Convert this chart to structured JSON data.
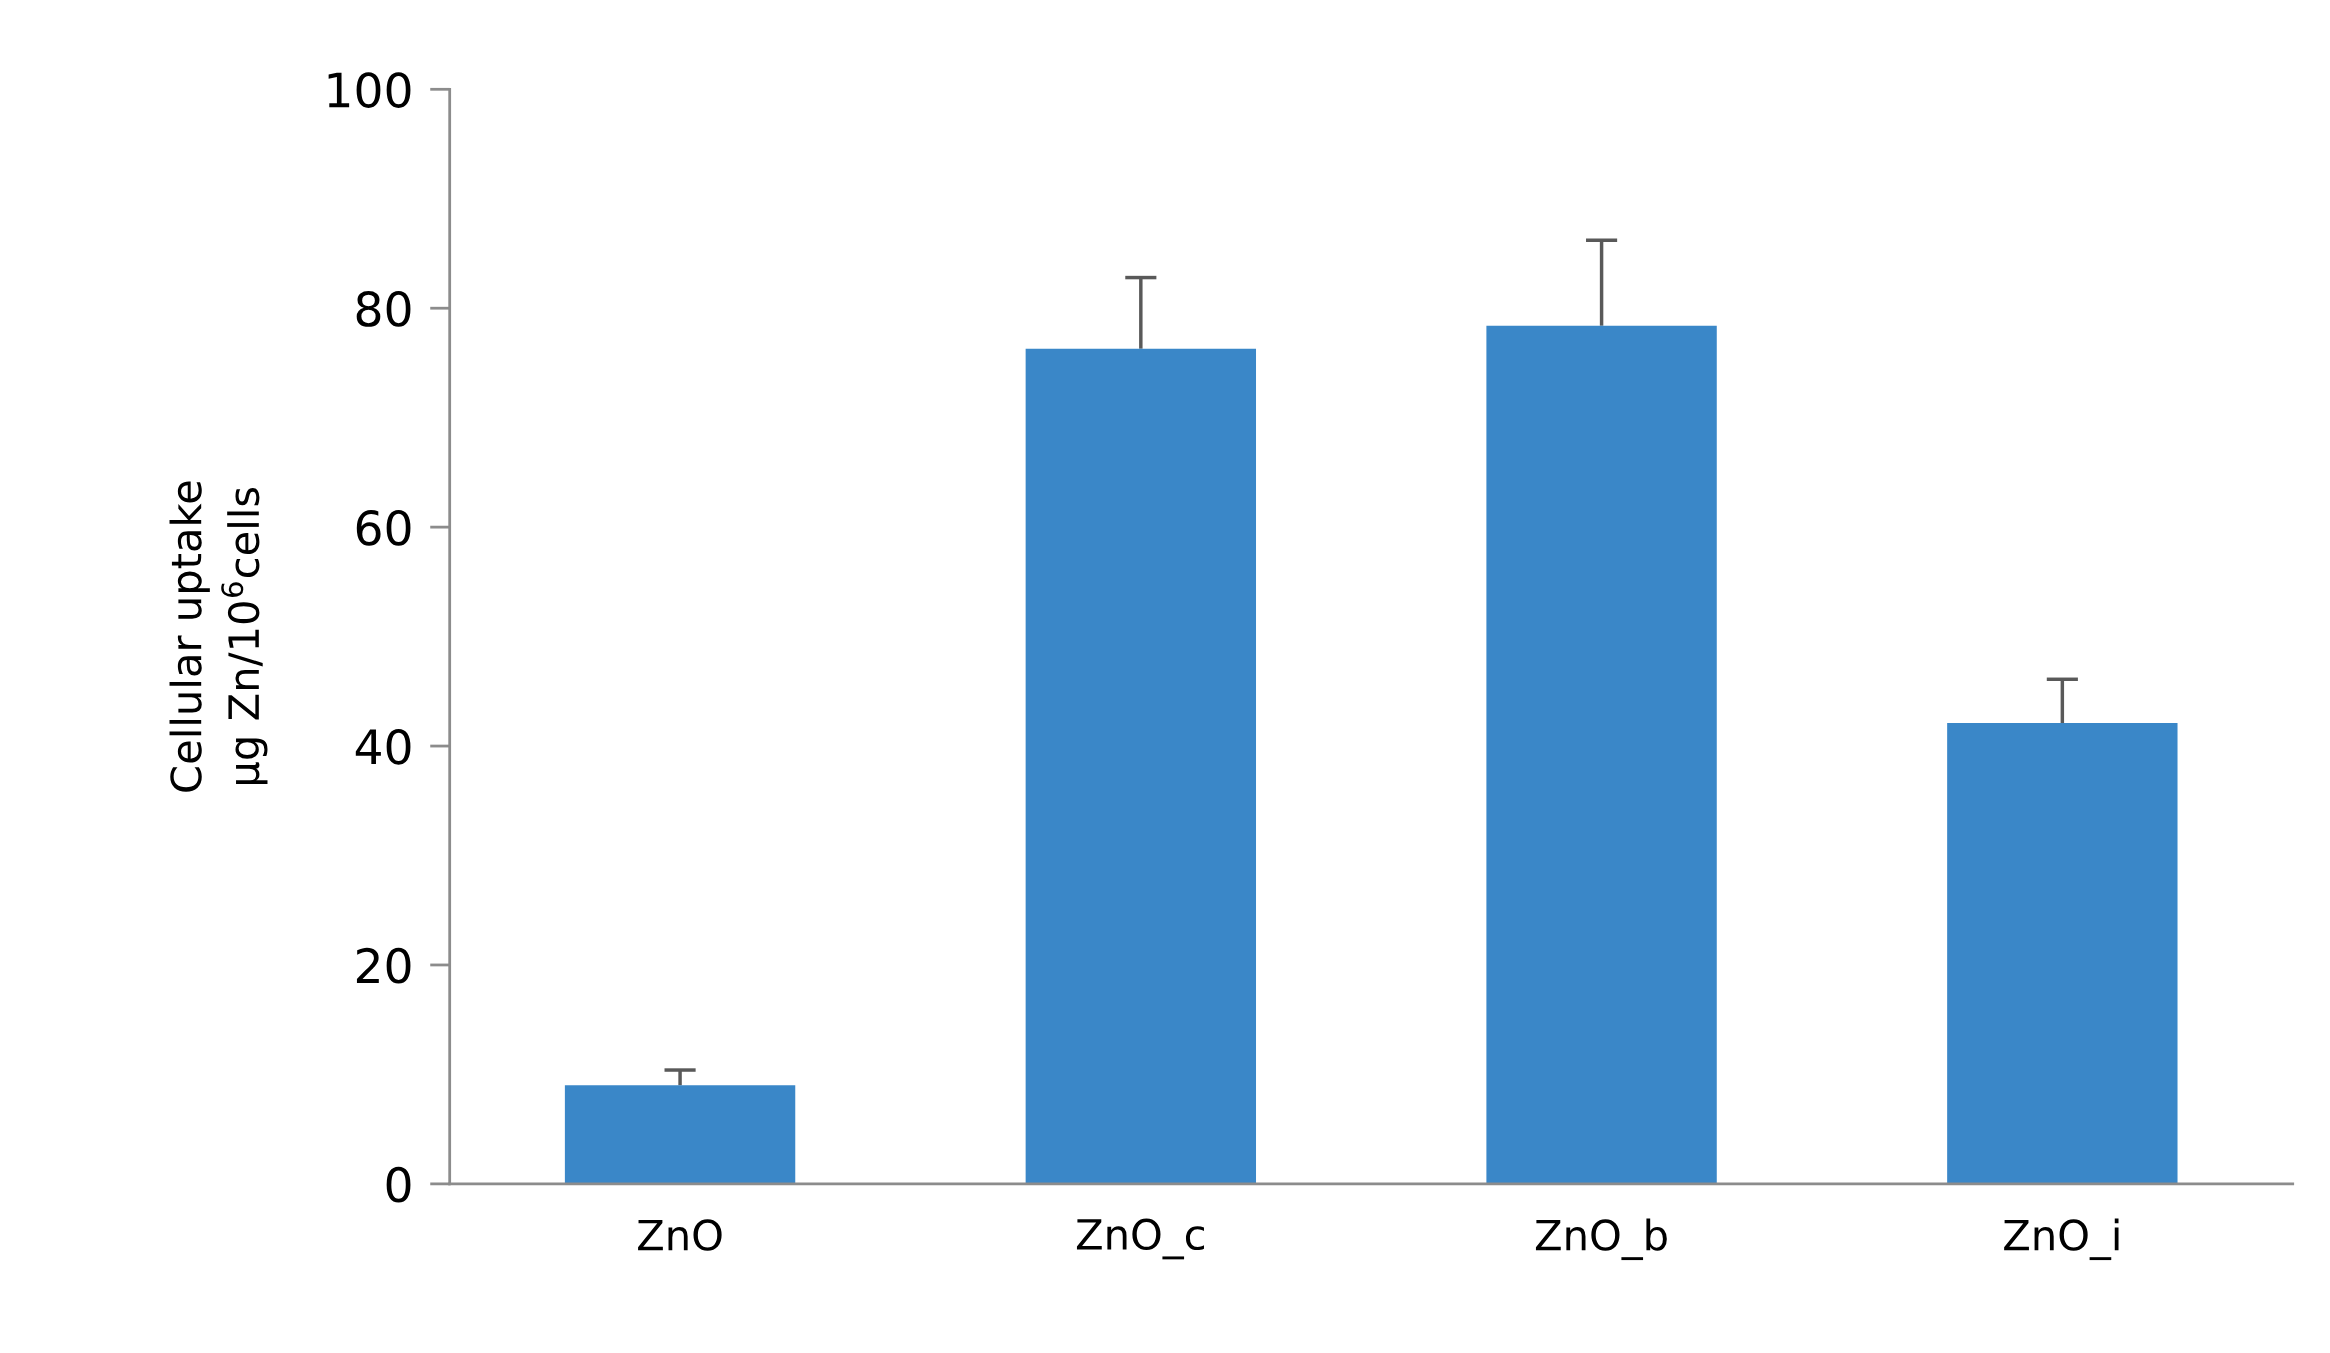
{
  "chart_data": {
    "type": "bar",
    "ylabel": "Cellular uptake\nμg Zn/10$^{6}$cells",
    "categories": [
      "ZnO",
      "ZnO_c",
      "ZnO_b",
      "ZnO_i"
    ],
    "values": [
      9,
      76.3,
      78.4,
      42.1
    ],
    "errors": [
      [
        9,
        10.4
      ],
      [
        76.3,
        82.8
      ],
      [
        78.4,
        86.2
      ],
      [
        42.1,
        46.1
      ]
    ],
    "color": "#3a87c8",
    "ylim": [
      0,
      100
    ],
    "yticks": [
      0,
      20,
      40,
      60,
      80,
      100
    ],
    "grid": false
  }
}
